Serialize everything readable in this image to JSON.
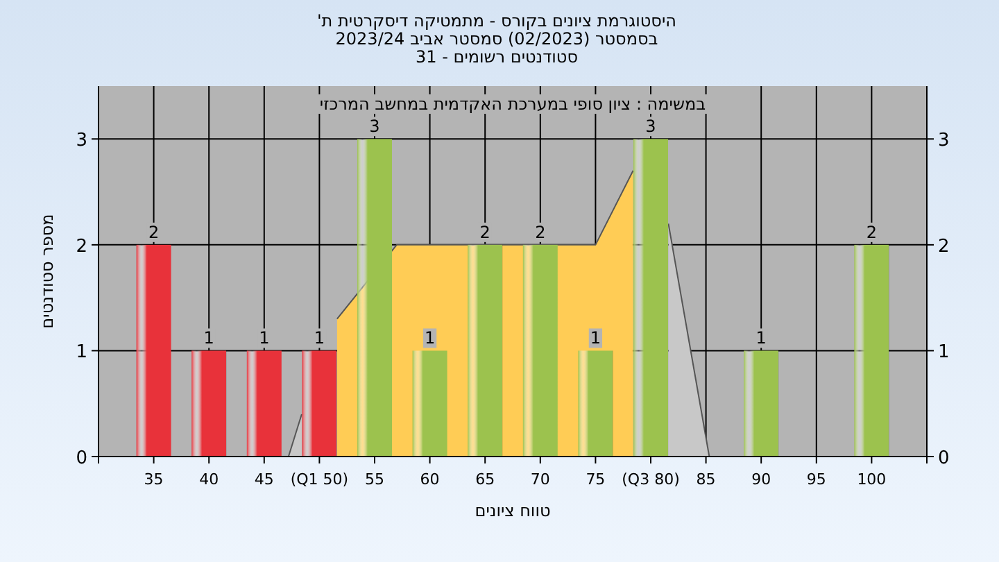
{
  "chart_data": {
    "type": "bar",
    "title": "היסטוגרמת ציונים בקורס - מתמטיקה דיסקרטית ת'",
    "subtitle": "בסמסטר (02/2023) סמסטר אביב 2023/24\nסטודנטים רשומים - 31",
    "xlabel": "טווח ציונים",
    "ylabel": "מספר סטודנטים",
    "annotations": [
      "במשימה : ציון סופי במערכת האקדמית במחשב המרכזי"
    ],
    "series": [
      {
        "type": "area",
        "color": "#c8c8c8",
        "x": [
          47.2,
          48.4
        ],
        "values": [
          0,
          0.4
        ]
      },
      {
        "type": "area",
        "color": "#c8c8c8",
        "x": [
          81.6,
          85.3
        ],
        "values": [
          2.2,
          0
        ]
      },
      {
        "type": "area",
        "color": "#ffcc55",
        "x": [
          51.6,
          57,
          75,
          78.4
        ],
        "values": [
          1.3,
          2,
          2,
          2.7
        ]
      },
      {
        "x": [
          35,
          40,
          45,
          50,
          55,
          60,
          65,
          70,
          75,
          80,
          85,
          90,
          95,
          100
        ],
        "values": [
          2,
          1,
          1,
          1,
          3,
          1,
          2,
          2,
          1,
          3,
          null,
          1,
          null,
          2
        ],
        "value_labels": [
          "2",
          "1",
          "1",
          "1",
          "3",
          "1",
          "2",
          "2",
          "1",
          "3",
          null,
          "1",
          null,
          "2"
        ],
        "colors": [
          "#e8323a",
          "#e8323a",
          "#e8323a",
          "#e8323a",
          "#9cc24e",
          "#9cc24e",
          "#9cc24e",
          "#9cc24e",
          "#9cc24e",
          "#9cc24e",
          null,
          "#9cc24e",
          null,
          "#9cc24e"
        ]
      }
    ],
    "grid": true,
    "xlim": [
      30,
      105
    ],
    "xticks": [
      {
        "value": 30,
        "label": null
      },
      35,
      40,
      45,
      {
        "value": 50,
        "label": "(Q1 50)"
      },
      55,
      60,
      65,
      70,
      75,
      {
        "value": 80,
        "label": "(Q3 80)"
      },
      85,
      90,
      95,
      100,
      {
        "value": 105,
        "label": null
      }
    ],
    "ylim": [
      0,
      3.5
    ],
    "yticks": [
      0,
      1,
      2,
      3
    ],
    "y2lim": [
      0,
      3.5
    ],
    "y2ticks": [
      0,
      1,
      2,
      3
    ]
  }
}
